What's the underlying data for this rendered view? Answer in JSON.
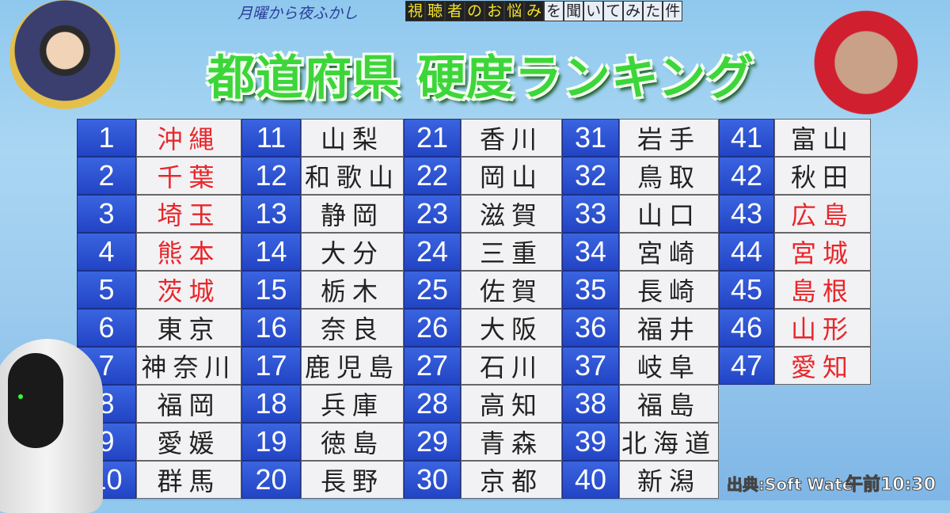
{
  "header": {
    "show_name": "月曜から夜ふかし",
    "topic_highlight": [
      "視",
      "聴",
      "者",
      "の",
      "お",
      "悩",
      "み"
    ],
    "topic_plain": [
      "を",
      "聞",
      "い",
      "て",
      "み",
      "た",
      "件"
    ],
    "title": "都道府県 硬度ランキング"
  },
  "ranking": [
    {
      "rank": "1",
      "name": "沖縄",
      "red": true
    },
    {
      "rank": "2",
      "name": "千葉",
      "red": true
    },
    {
      "rank": "3",
      "name": "埼玉",
      "red": true
    },
    {
      "rank": "4",
      "name": "熊本",
      "red": true
    },
    {
      "rank": "5",
      "name": "茨城",
      "red": true
    },
    {
      "rank": "6",
      "name": "東京"
    },
    {
      "rank": "7",
      "name": "神奈川"
    },
    {
      "rank": "8",
      "name": "福岡"
    },
    {
      "rank": "9",
      "name": "愛媛"
    },
    {
      "rank": "10",
      "name": "群馬"
    },
    {
      "rank": "11",
      "name": "山梨"
    },
    {
      "rank": "12",
      "name": "和歌山"
    },
    {
      "rank": "13",
      "name": "静岡"
    },
    {
      "rank": "14",
      "name": "大分"
    },
    {
      "rank": "15",
      "name": "栃木"
    },
    {
      "rank": "16",
      "name": "奈良"
    },
    {
      "rank": "17",
      "name": "鹿児島"
    },
    {
      "rank": "18",
      "name": "兵庫"
    },
    {
      "rank": "19",
      "name": "徳島"
    },
    {
      "rank": "20",
      "name": "長野"
    },
    {
      "rank": "21",
      "name": "香川"
    },
    {
      "rank": "22",
      "name": "岡山"
    },
    {
      "rank": "23",
      "name": "滋賀"
    },
    {
      "rank": "24",
      "name": "三重"
    },
    {
      "rank": "25",
      "name": "佐賀"
    },
    {
      "rank": "26",
      "name": "大阪"
    },
    {
      "rank": "27",
      "name": "石川"
    },
    {
      "rank": "28",
      "name": "高知"
    },
    {
      "rank": "29",
      "name": "青森"
    },
    {
      "rank": "30",
      "name": "京都"
    },
    {
      "rank": "31",
      "name": "岩手"
    },
    {
      "rank": "32",
      "name": "鳥取"
    },
    {
      "rank": "33",
      "name": "山口"
    },
    {
      "rank": "34",
      "name": "宮崎"
    },
    {
      "rank": "35",
      "name": "長崎"
    },
    {
      "rank": "36",
      "name": "福井"
    },
    {
      "rank": "37",
      "name": "岐阜"
    },
    {
      "rank": "38",
      "name": "福島"
    },
    {
      "rank": "39",
      "name": "北海道"
    },
    {
      "rank": "40",
      "name": "新潟"
    },
    {
      "rank": "41",
      "name": "富山"
    },
    {
      "rank": "42",
      "name": "秋田"
    },
    {
      "rank": "43",
      "name": "広島",
      "red": true
    },
    {
      "rank": "44",
      "name": "宮城",
      "red": true
    },
    {
      "rank": "45",
      "name": "島根",
      "red": true
    },
    {
      "rank": "46",
      "name": "山形",
      "red": true
    },
    {
      "rank": "47",
      "name": "愛知",
      "red": true
    }
  ],
  "colors": {
    "number_cell": "#2a4fd0",
    "name_cell": "#f2f2f4",
    "highlight_text": "#e8262a",
    "title": "#3dd63a"
  },
  "footer": {
    "source": "出典:Soft Wate",
    "clock": "午前10:30"
  }
}
